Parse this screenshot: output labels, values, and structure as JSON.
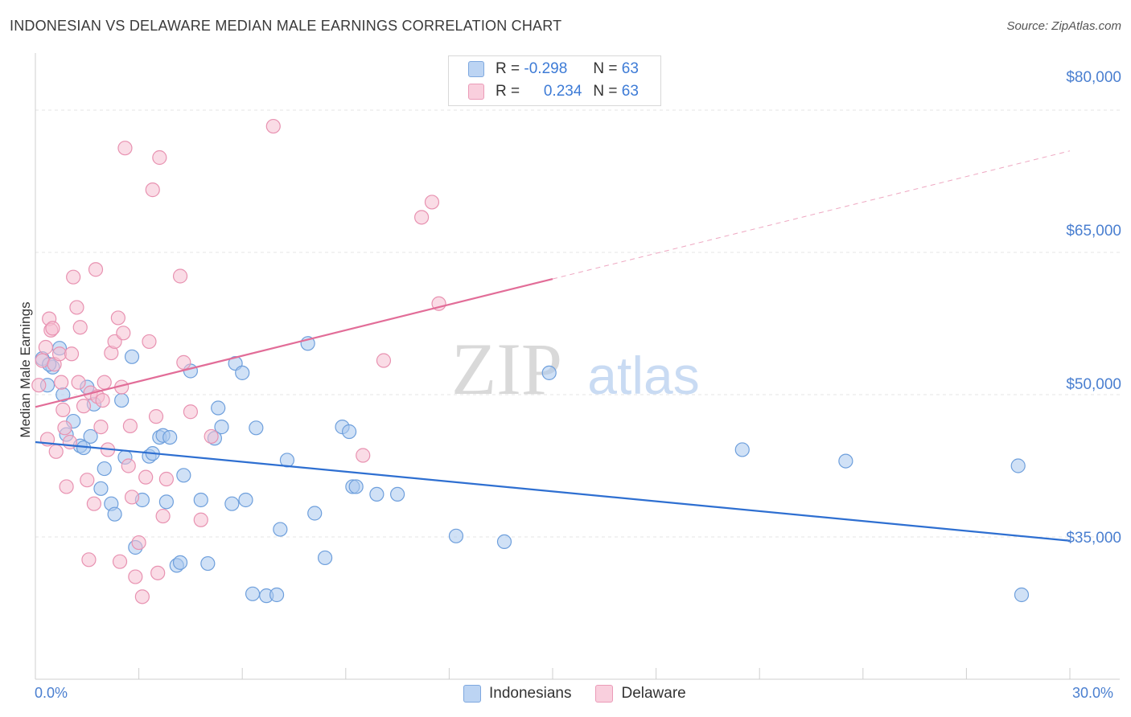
{
  "title": "INDONESIAN VS DELAWARE MEDIAN MALE EARNINGS CORRELATION CHART",
  "source": "Source: ZipAtlas.com",
  "watermark": {
    "zip": "ZIP",
    "atlas": "atlas"
  },
  "colors": {
    "blue_fill": "#a9c8ef",
    "blue_stroke": "#6e9fdc",
    "blue_line": "#2e6fd1",
    "pink_fill": "#f6bfd2",
    "pink_stroke": "#e892b1",
    "pink_line": "#e26d98",
    "grid": "#e6e6e6",
    "axis_text": "#4a7fd0"
  },
  "legend": {
    "rows": [
      {
        "r_label": "R =",
        "r_value": "-0.298",
        "n_label": "N =",
        "n_value": "63"
      },
      {
        "r_label": "R =",
        "r_value": "0.234",
        "n_label": "N =",
        "n_value": "63"
      }
    ]
  },
  "bottom_legend": [
    "Indonesians",
    "Delaware"
  ],
  "chart_data": {
    "type": "scatter",
    "title": "INDONESIAN VS DELAWARE MEDIAN MALE EARNINGS CORRELATION CHART",
    "xlabel": "",
    "ylabel": "Median Male Earnings",
    "xlim": [
      0,
      30
    ],
    "ylim": [
      20000,
      85000
    ],
    "x_tick_labels": [
      "0.0%",
      "30.0%"
    ],
    "y_ticks": [
      35000,
      50000,
      65000,
      80000
    ],
    "y_tick_labels": [
      "$35,000",
      "$50,000",
      "$65,000",
      "$80,000"
    ],
    "grid": true,
    "series": [
      {
        "name": "Indonesians",
        "color": "blue",
        "trend": {
          "x0": 0.0,
          "y0": 45000,
          "x1": 30.0,
          "y1": 34600,
          "solid_until": 30.0
        },
        "points": [
          [
            0.2,
            53800
          ],
          [
            0.5,
            52900
          ],
          [
            0.35,
            51000
          ],
          [
            0.7,
            54900
          ],
          [
            0.8,
            50000
          ],
          [
            1.1,
            47200
          ],
          [
            0.9,
            45800
          ],
          [
            1.3,
            44600
          ],
          [
            1.4,
            44400
          ],
          [
            1.5,
            50800
          ],
          [
            1.6,
            45600
          ],
          [
            1.7,
            49000
          ],
          [
            1.9,
            40100
          ],
          [
            2.0,
            42200
          ],
          [
            2.2,
            38500
          ],
          [
            2.3,
            37400
          ],
          [
            2.5,
            49400
          ],
          [
            2.6,
            43400
          ],
          [
            2.8,
            54000
          ],
          [
            2.9,
            33900
          ],
          [
            3.1,
            38900
          ],
          [
            3.3,
            43500
          ],
          [
            3.4,
            43800
          ],
          [
            3.6,
            45500
          ],
          [
            3.7,
            45700
          ],
          [
            3.8,
            38700
          ],
          [
            3.9,
            45500
          ],
          [
            4.1,
            32000
          ],
          [
            4.2,
            32300
          ],
          [
            4.3,
            41500
          ],
          [
            4.5,
            52500
          ],
          [
            4.8,
            38900
          ],
          [
            5.0,
            32200
          ],
          [
            5.2,
            45400
          ],
          [
            5.3,
            48600
          ],
          [
            5.4,
            46600
          ],
          [
            5.7,
            38500
          ],
          [
            5.8,
            53300
          ],
          [
            6.0,
            52300
          ],
          [
            6.1,
            38900
          ],
          [
            6.4,
            46500
          ],
          [
            6.3,
            29000
          ],
          [
            6.7,
            28800
          ],
          [
            7.0,
            28900
          ],
          [
            7.1,
            35800
          ],
          [
            7.3,
            43100
          ],
          [
            7.9,
            55400
          ],
          [
            8.1,
            37500
          ],
          [
            8.4,
            32800
          ],
          [
            8.9,
            46600
          ],
          [
            9.1,
            46100
          ],
          [
            9.2,
            40300
          ],
          [
            9.3,
            40300
          ],
          [
            9.9,
            39500
          ],
          [
            10.5,
            39500
          ],
          [
            12.2,
            35100
          ],
          [
            13.6,
            34500
          ],
          [
            14.9,
            52300
          ],
          [
            20.5,
            44200
          ],
          [
            23.5,
            43000
          ],
          [
            28.5,
            42500
          ],
          [
            28.6,
            28900
          ],
          [
            0.4,
            53200
          ]
        ]
      },
      {
        "name": "Delaware",
        "color": "pink",
        "trend": {
          "x0": 0.0,
          "y0": 48700,
          "x1": 30.0,
          "y1": 75700,
          "solid_until": 15.0
        },
        "points": [
          [
            0.1,
            51000
          ],
          [
            0.2,
            53600
          ],
          [
            0.3,
            55000
          ],
          [
            0.35,
            45300
          ],
          [
            0.4,
            58000
          ],
          [
            0.45,
            56800
          ],
          [
            0.5,
            57000
          ],
          [
            0.55,
            53200
          ],
          [
            0.6,
            44000
          ],
          [
            0.7,
            54300
          ],
          [
            0.75,
            51300
          ],
          [
            0.8,
            48400
          ],
          [
            0.85,
            46500
          ],
          [
            0.9,
            40300
          ],
          [
            1.0,
            45000
          ],
          [
            1.05,
            54300
          ],
          [
            1.1,
            62400
          ],
          [
            1.2,
            59200
          ],
          [
            1.25,
            51300
          ],
          [
            1.3,
            57100
          ],
          [
            1.4,
            48800
          ],
          [
            1.5,
            41000
          ],
          [
            1.55,
            32600
          ],
          [
            1.6,
            50200
          ],
          [
            1.7,
            38500
          ],
          [
            1.75,
            63200
          ],
          [
            1.8,
            49800
          ],
          [
            1.9,
            46600
          ],
          [
            1.95,
            49400
          ],
          [
            2.0,
            51300
          ],
          [
            2.1,
            44200
          ],
          [
            2.2,
            54400
          ],
          [
            2.3,
            55600
          ],
          [
            2.4,
            58100
          ],
          [
            2.45,
            32400
          ],
          [
            2.5,
            50800
          ],
          [
            2.55,
            56500
          ],
          [
            2.6,
            76000
          ],
          [
            2.7,
            42500
          ],
          [
            2.75,
            46700
          ],
          [
            2.8,
            39200
          ],
          [
            2.9,
            30800
          ],
          [
            3.0,
            34400
          ],
          [
            3.1,
            28700
          ],
          [
            3.2,
            41300
          ],
          [
            3.3,
            55600
          ],
          [
            3.4,
            71600
          ],
          [
            3.5,
            47700
          ],
          [
            3.6,
            75000
          ],
          [
            3.7,
            37200
          ],
          [
            3.8,
            41100
          ],
          [
            4.2,
            62500
          ],
          [
            4.3,
            53400
          ],
          [
            4.5,
            48200
          ],
          [
            4.8,
            36800
          ],
          [
            5.1,
            45600
          ],
          [
            6.9,
            78300
          ],
          [
            9.5,
            43600
          ],
          [
            10.1,
            53600
          ],
          [
            11.2,
            68700
          ],
          [
            11.5,
            70300
          ],
          [
            11.7,
            59600
          ],
          [
            3.55,
            31200
          ]
        ]
      }
    ]
  }
}
